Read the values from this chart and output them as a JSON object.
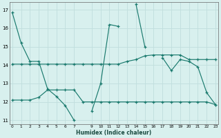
{
  "xlabel": "Humidex (Indice chaleur)",
  "x": [
    0,
    1,
    2,
    3,
    4,
    5,
    6,
    7,
    8,
    9,
    10,
    11,
    12,
    13,
    14,
    15,
    16,
    17,
    18,
    19,
    20,
    21,
    22,
    23
  ],
  "line1": [
    16.85,
    15.2,
    14.2,
    14.2,
    12.7,
    12.3,
    11.8,
    11.0,
    null,
    11.5,
    13.0,
    16.2,
    16.1,
    null,
    17.3,
    15.0,
    null,
    14.4,
    13.7,
    14.3,
    14.2,
    13.9,
    12.5,
    11.85
  ],
  "line2": [
    14.05,
    14.05,
    14.05,
    14.05,
    14.05,
    14.05,
    14.05,
    14.05,
    14.05,
    14.05,
    14.05,
    14.05,
    14.05,
    14.2,
    14.3,
    14.5,
    14.55,
    14.55,
    14.55,
    14.55,
    14.3,
    14.3,
    14.3,
    14.3
  ],
  "line3": [
    12.1,
    12.1,
    12.1,
    12.25,
    12.65,
    12.65,
    12.65,
    12.65,
    12.0,
    12.0,
    12.0,
    12.0,
    12.0,
    12.0,
    12.0,
    12.0,
    12.0,
    12.0,
    12.0,
    12.0,
    12.0,
    12.0,
    12.0,
    11.85
  ],
  "ylim_min": 10.8,
  "ylim_max": 17.4,
  "xlim_min": -0.3,
  "xlim_max": 23.3,
  "yticks": [
    11,
    12,
    13,
    14,
    15,
    16,
    17
  ],
  "xticks": [
    0,
    1,
    2,
    3,
    4,
    5,
    6,
    7,
    9,
    10,
    11,
    12,
    13,
    14,
    15,
    16,
    17,
    18,
    19,
    20,
    21,
    22,
    23
  ],
  "line_color": "#1a7a6e",
  "bg_color": "#d8f0ee",
  "grid_color": "#c0dedd"
}
